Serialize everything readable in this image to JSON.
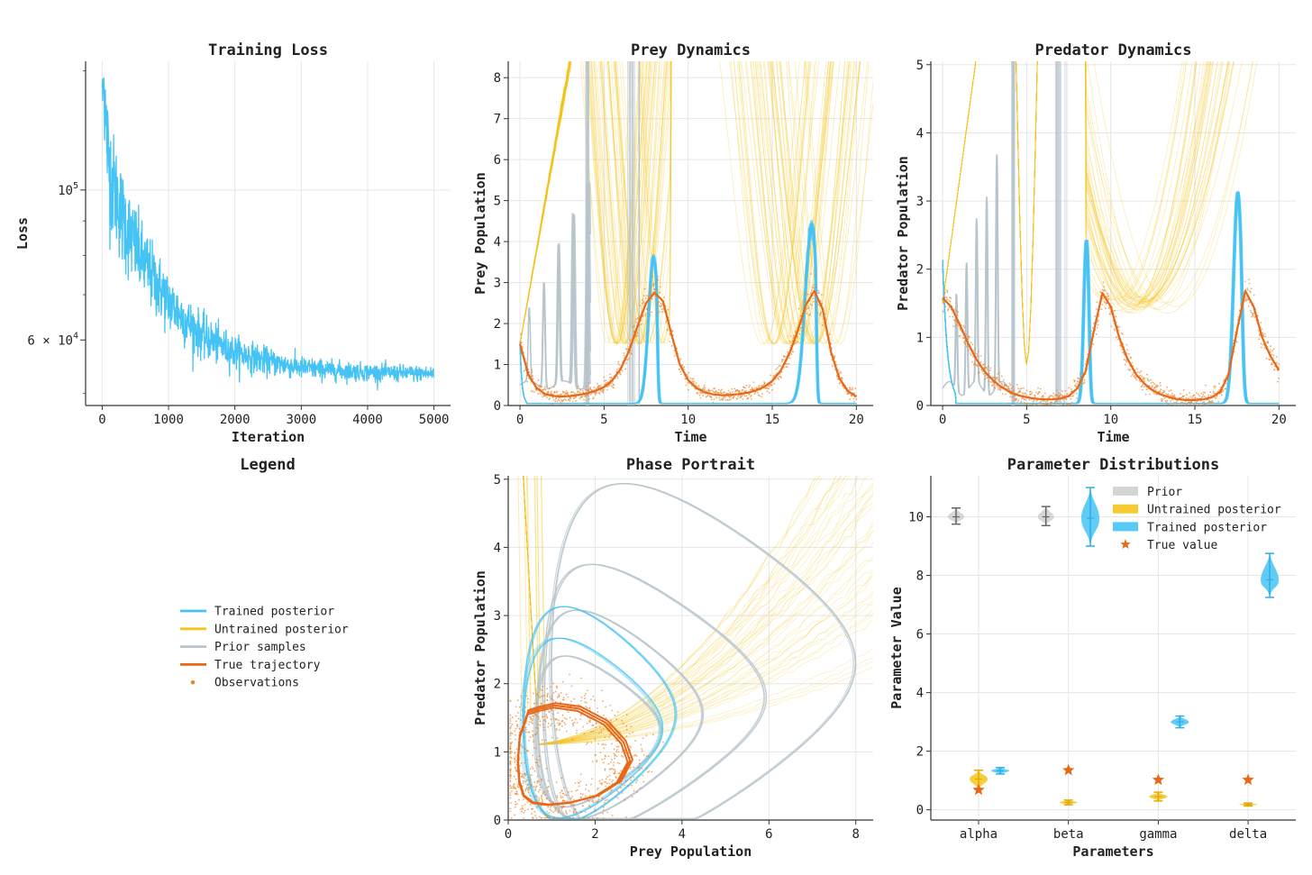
{
  "colors": {
    "trained": "#45c3f5",
    "untrained": "#f5c518",
    "prior": "#b7c4cc",
    "true": "#e8681a",
    "obs": "#e8862f",
    "prior_violin": "#cfcfcf",
    "prior_bar": "#666666"
  },
  "chart_data": [
    {
      "id": "loss",
      "type": "line",
      "title": "Training Loss",
      "xlabel": "Iteration",
      "ylabel": "Loss",
      "yscale": "log",
      "xlim": [
        -250,
        5250
      ],
      "ylim": [
        48000,
        155000
      ],
      "xticks": [
        0,
        1000,
        2000,
        3000,
        4000,
        5000
      ],
      "yticks": [
        {
          "value": 100000,
          "label": "10^5"
        },
        {
          "value": 60000,
          "label": "6 × 10^4"
        }
      ],
      "series": [
        {
          "x": [
            0,
            25,
            50,
            100,
            150,
            200,
            300,
            400,
            500,
            600,
            800,
            1000,
            1200,
            1500,
            1800,
            2000,
            2500,
            3000,
            3500,
            4000,
            4500,
            5000
          ],
          "y": [
            135000,
            145000,
            128000,
            110000,
            104000,
            100000,
            92000,
            87000,
            83000,
            79000,
            73500,
            68500,
            65000,
            61000,
            58800,
            57600,
            55800,
            54600,
            54100,
            53800,
            53600,
            53500
          ]
        }
      ],
      "grid": true
    },
    {
      "id": "prey",
      "type": "line",
      "title": "Prey Dynamics",
      "xlabel": "Time",
      "ylabel": "Prey Population",
      "xlim": [
        -0.7,
        21
      ],
      "ylim": [
        0,
        8.4
      ],
      "xticks": [
        0,
        5,
        10,
        15,
        20
      ],
      "yticks": [
        0,
        1,
        2,
        3,
        4,
        5,
        6,
        7,
        8
      ],
      "series": [
        {
          "name": "True trajectory",
          "x": [
            0,
            0.5,
            1,
            1.5,
            2,
            2.5,
            3,
            3.5,
            4,
            4.5,
            5,
            5.5,
            6,
            6.5,
            7,
            7.5,
            8,
            8.5,
            9,
            9.5,
            10,
            10.5,
            11,
            11.5,
            12,
            12.5,
            13,
            13.5,
            14,
            14.5,
            15,
            15.5,
            16,
            16.5,
            17,
            17.5,
            18,
            18.5,
            19,
            19.5,
            20
          ],
          "y": [
            1.5,
            0.75,
            0.42,
            0.28,
            0.23,
            0.22,
            0.23,
            0.26,
            0.3,
            0.36,
            0.45,
            0.62,
            0.9,
            1.35,
            1.95,
            2.5,
            2.75,
            2.55,
            1.75,
            1.0,
            0.62,
            0.42,
            0.32,
            0.27,
            0.25,
            0.26,
            0.28,
            0.31,
            0.36,
            0.45,
            0.6,
            0.85,
            1.25,
            1.8,
            2.45,
            2.8,
            2.35,
            1.3,
            0.65,
            0.35,
            0.22
          ]
        }
      ],
      "grid": true
    },
    {
      "id": "predator",
      "type": "line",
      "title": "Predator Dynamics",
      "xlabel": "Time",
      "ylabel": "Predator Population",
      "xlim": [
        -0.7,
        21
      ],
      "ylim": [
        0,
        5.05
      ],
      "xticks": [
        0,
        5,
        10,
        15,
        20
      ],
      "yticks": [
        0,
        1,
        2,
        3,
        4,
        5
      ],
      "series": [
        {
          "name": "True trajectory",
          "x": [
            0,
            0.5,
            1,
            1.5,
            2,
            2.5,
            3,
            3.5,
            4,
            4.5,
            5,
            5.5,
            6,
            6.5,
            7,
            7.5,
            8,
            8.5,
            9,
            9.5,
            10,
            10.5,
            11,
            11.5,
            12,
            12.5,
            13,
            13.5,
            14,
            14.5,
            15,
            15.5,
            16,
            16.5,
            17,
            17.5,
            18,
            18.5,
            19,
            19.5,
            20
          ],
          "y": [
            1.58,
            1.45,
            1.2,
            0.92,
            0.68,
            0.5,
            0.37,
            0.27,
            0.2,
            0.15,
            0.12,
            0.1,
            0.09,
            0.09,
            0.1,
            0.14,
            0.25,
            0.5,
            1.1,
            1.65,
            1.45,
            1.0,
            0.68,
            0.46,
            0.32,
            0.22,
            0.16,
            0.12,
            0.09,
            0.08,
            0.08,
            0.09,
            0.12,
            0.2,
            0.45,
            1.1,
            1.68,
            1.45,
            1.0,
            0.72,
            0.52
          ]
        }
      ],
      "grid": true
    },
    {
      "id": "phase",
      "type": "line",
      "title": "Phase Portrait",
      "xlabel": "Prey Population",
      "ylabel": "Predator Population",
      "xlim": [
        0,
        8.4
      ],
      "ylim": [
        0,
        5.05
      ],
      "xticks": [
        0,
        2,
        4,
        6,
        8
      ],
      "yticks": [
        0,
        1,
        2,
        3,
        4,
        5
      ],
      "series": [
        {
          "name": "True trajectory",
          "x": [
            0.45,
            0.26,
            0.22,
            0.25,
            0.35,
            0.55,
            0.9,
            1.4,
            2.0,
            2.5,
            2.75,
            2.6,
            2.2,
            1.6,
            1.05,
            0.7,
            0.45
          ],
          "y": [
            1.55,
            1.2,
            0.85,
            0.55,
            0.35,
            0.25,
            0.22,
            0.25,
            0.35,
            0.55,
            0.85,
            1.12,
            1.4,
            1.6,
            1.65,
            1.6,
            1.55
          ]
        }
      ],
      "grid": true
    },
    {
      "id": "params",
      "type": "violin",
      "title": "Parameter Distributions",
      "xlabel": "Parameters",
      "ylabel": "Parameter Value",
      "categories": [
        "alpha",
        "beta",
        "gamma",
        "delta"
      ],
      "ylim": [
        -0.35,
        11.4
      ],
      "yticks": [
        0,
        2,
        4,
        6,
        8,
        10
      ],
      "prior": [
        {
          "cat": 0,
          "center": 10.0,
          "min": 9.75,
          "max": 10.3
        },
        {
          "cat": 1,
          "center": 10.0,
          "min": 9.7,
          "max": 10.35
        }
      ],
      "untrained": [
        {
          "cat": 0,
          "center": 1.05,
          "min": 0.7,
          "max": 1.35
        },
        {
          "cat": 1,
          "center": 0.25,
          "min": 0.17,
          "max": 0.33
        },
        {
          "cat": 2,
          "center": 0.45,
          "min": 0.3,
          "max": 0.6
        },
        {
          "cat": 3,
          "center": 0.18,
          "min": 0.13,
          "max": 0.23
        }
      ],
      "trained": [
        {
          "cat": 0,
          "center": 1.33,
          "min": 1.22,
          "max": 1.44
        },
        {
          "cat": 0.5,
          "center": 9.95,
          "min": 9.0,
          "max": 11.0
        },
        {
          "cat": 2,
          "center": 3.0,
          "min": 2.8,
          "max": 3.2
        },
        {
          "cat": 3,
          "center": 7.85,
          "min": 7.25,
          "max": 8.75
        }
      ],
      "true_values": [
        0.68,
        1.35,
        1.02,
        1.02
      ],
      "legend": [
        "Prior",
        "Untrained posterior",
        "Trained posterior",
        "True value"
      ],
      "legend_position": "upper-right",
      "grid": true
    }
  ],
  "legend_panel": {
    "title": "Legend",
    "items": [
      {
        "label": "Trained posterior",
        "kind": "line",
        "color": "#45c3f5"
      },
      {
        "label": "Untrained posterior",
        "kind": "line",
        "color": "#f5c518"
      },
      {
        "label": "Prior samples",
        "kind": "line",
        "color": "#b7c4cc"
      },
      {
        "label": "True trajectory",
        "kind": "line",
        "color": "#e8681a"
      },
      {
        "label": "Observations",
        "kind": "dot",
        "color": "#e8862f"
      }
    ]
  }
}
